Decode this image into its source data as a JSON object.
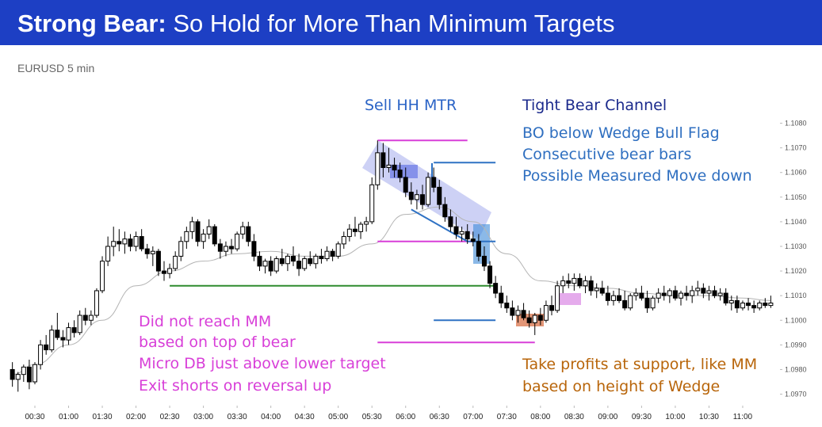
{
  "title_lead": "Strong Bear:",
  "title": "So Hold for More Than Minimum Targets",
  "chart_data": {
    "type": "candlestick",
    "subtitle": "EURUSD 5 min",
    "up_color": "#ffffff",
    "down_color": "#000000",
    "x": [
      "00:10",
      "00:15",
      "00:20",
      "00:25",
      "00:30",
      "00:35",
      "00:40",
      "00:45",
      "00:50",
      "00:55",
      "01:00",
      "01:05",
      "01:10",
      "01:15",
      "01:20",
      "01:25",
      "01:30",
      "01:35",
      "01:40",
      "01:45",
      "01:50",
      "01:55",
      "02:00",
      "02:05",
      "02:10",
      "02:15",
      "02:20",
      "02:25",
      "02:30",
      "02:35",
      "02:40",
      "02:45",
      "02:50",
      "02:55",
      "03:00",
      "03:05",
      "03:10",
      "03:15",
      "03:20",
      "03:25",
      "03:30",
      "03:35",
      "03:40",
      "03:45",
      "03:50",
      "03:55",
      "04:00",
      "04:05",
      "04:10",
      "04:15",
      "04:20",
      "04:25",
      "04:30",
      "04:35",
      "04:40",
      "04:45",
      "04:50",
      "04:55",
      "05:00",
      "05:05",
      "05:10",
      "05:15",
      "05:20",
      "05:25",
      "05:30",
      "05:35",
      "05:40",
      "05:45",
      "05:50",
      "05:55",
      "06:00",
      "06:05",
      "06:10",
      "06:15",
      "06:20",
      "06:25",
      "06:30",
      "06:35",
      "06:40",
      "06:45",
      "06:50",
      "06:55",
      "07:00",
      "07:05",
      "07:10",
      "07:15",
      "07:20",
      "07:25",
      "07:30",
      "07:35",
      "07:40",
      "07:45",
      "07:50",
      "07:55",
      "08:00",
      "08:05",
      "08:10",
      "08:15",
      "08:20",
      "08:25",
      "08:30",
      "08:35",
      "08:40",
      "08:45",
      "08:50",
      "08:55",
      "09:00",
      "09:05",
      "09:10",
      "09:15",
      "09:20",
      "09:25",
      "09:30",
      "09:35",
      "09:40",
      "09:45",
      "09:50",
      "09:55",
      "10:00",
      "10:05",
      "10:10",
      "10:15",
      "10:20",
      "10:25",
      "10:30",
      "10:35",
      "10:40",
      "10:45",
      "10:50",
      "10:55",
      "11:00",
      "11:05",
      "11:10",
      "11:15",
      "11:20",
      "11:25"
    ],
    "ohlc": [
      [
        1.098,
        1.0983,
        1.0973,
        1.0976
      ],
      [
        1.0976,
        1.0979,
        1.0971,
        1.0978
      ],
      [
        1.0978,
        1.0982,
        1.0975,
        1.0981
      ],
      [
        1.0981,
        1.0984,
        1.0972,
        1.0975
      ],
      [
        1.0975,
        1.0983,
        1.0974,
        1.0982
      ],
      [
        1.0982,
        1.0992,
        1.098,
        1.099
      ],
      [
        1.099,
        1.0994,
        1.0986,
        1.0988
      ],
      [
        1.0988,
        1.0998,
        1.0987,
        1.0996
      ],
      [
        1.0996,
        1.1003,
        1.0992,
        1.0993
      ],
      [
        1.0993,
        1.0996,
        1.0989,
        1.0992
      ],
      [
        1.0992,
        1.0999,
        1.099,
        1.0997
      ],
      [
        1.0997,
        1.1,
        1.0993,
        1.0995
      ],
      [
        1.0995,
        1.1004,
        1.0994,
        1.1002
      ],
      [
        1.1002,
        1.1005,
        1.0998,
        1.1
      ],
      [
        1.1,
        1.1004,
        1.0998,
        1.1002
      ],
      [
        1.1002,
        1.1013,
        1.1001,
        1.1012
      ],
      [
        1.1012,
        1.1026,
        1.1011,
        1.1024
      ],
      [
        1.1024,
        1.1034,
        1.1022,
        1.103
      ],
      [
        1.103,
        1.1038,
        1.1026,
        1.1032
      ],
      [
        1.1032,
        1.1037,
        1.1028,
        1.1031
      ],
      [
        1.1031,
        1.1036,
        1.1027,
        1.1033
      ],
      [
        1.1033,
        1.1035,
        1.1028,
        1.103
      ],
      [
        1.103,
        1.1036,
        1.1028,
        1.1034
      ],
      [
        1.1034,
        1.1037,
        1.1028,
        1.1029
      ],
      [
        1.1029,
        1.1031,
        1.1025,
        1.1027
      ],
      [
        1.1027,
        1.103,
        1.1022,
        1.1028
      ],
      [
        1.1028,
        1.1029,
        1.1018,
        1.102
      ],
      [
        1.102,
        1.1024,
        1.1016,
        1.1019
      ],
      [
        1.1019,
        1.1023,
        1.1017,
        1.1021
      ],
      [
        1.1021,
        1.1028,
        1.102,
        1.1026
      ],
      [
        1.1026,
        1.1034,
        1.1024,
        1.1032
      ],
      [
        1.1032,
        1.1038,
        1.1029,
        1.1036
      ],
      [
        1.1036,
        1.1042,
        1.1033,
        1.104
      ],
      [
        1.104,
        1.1041,
        1.103,
        1.1032
      ],
      [
        1.1032,
        1.1037,
        1.1029,
        1.1035
      ],
      [
        1.1035,
        1.1041,
        1.1033,
        1.1038
      ],
      [
        1.1038,
        1.1039,
        1.103,
        1.1031
      ],
      [
        1.1031,
        1.1033,
        1.1025,
        1.1028
      ],
      [
        1.1028,
        1.1032,
        1.1026,
        1.103
      ],
      [
        1.103,
        1.1033,
        1.1027,
        1.1029
      ],
      [
        1.1029,
        1.1036,
        1.1028,
        1.1035
      ],
      [
        1.1035,
        1.104,
        1.1033,
        1.1038
      ],
      [
        1.1038,
        1.104,
        1.103,
        1.1032
      ],
      [
        1.1032,
        1.1035,
        1.1024,
        1.1026
      ],
      [
        1.1026,
        1.1028,
        1.102,
        1.1022
      ],
      [
        1.1022,
        1.1025,
        1.1019,
        1.1024
      ],
      [
        1.1024,
        1.1026,
        1.1018,
        1.102
      ],
      [
        1.102,
        1.1026,
        1.1019,
        1.1025
      ],
      [
        1.1025,
        1.1029,
        1.1022,
        1.1023
      ],
      [
        1.1023,
        1.1027,
        1.102,
        1.1026
      ],
      [
        1.1026,
        1.103,
        1.1022,
        1.1024
      ],
      [
        1.1024,
        1.1027,
        1.1018,
        1.1021
      ],
      [
        1.1021,
        1.1026,
        1.102,
        1.1025
      ],
      [
        1.1025,
        1.1028,
        1.1022,
        1.1023
      ],
      [
        1.1023,
        1.1027,
        1.1021,
        1.1026
      ],
      [
        1.1026,
        1.1029,
        1.1023,
        1.1025
      ],
      [
        1.1025,
        1.103,
        1.1024,
        1.1028
      ],
      [
        1.1028,
        1.1029,
        1.1024,
        1.1026
      ],
      [
        1.1026,
        1.1032,
        1.1025,
        1.1031
      ],
      [
        1.1031,
        1.1036,
        1.1029,
        1.1034
      ],
      [
        1.1034,
        1.1039,
        1.1032,
        1.1037
      ],
      [
        1.1037,
        1.1042,
        1.1034,
        1.1036
      ],
      [
        1.1036,
        1.104,
        1.1033,
        1.1039
      ],
      [
        1.1039,
        1.1042,
        1.1036,
        1.104
      ],
      [
        1.104,
        1.1058,
        1.1039,
        1.1055
      ],
      [
        1.1055,
        1.1073,
        1.1053,
        1.1068
      ],
      [
        1.1068,
        1.1072,
        1.1058,
        1.1062
      ],
      [
        1.1062,
        1.107,
        1.106,
        1.1063
      ],
      [
        1.1063,
        1.1066,
        1.1058,
        1.1061
      ],
      [
        1.1061,
        1.1064,
        1.1056,
        1.1058
      ],
      [
        1.1058,
        1.1062,
        1.105,
        1.1052
      ],
      [
        1.1052,
        1.1056,
        1.1047,
        1.1049
      ],
      [
        1.1049,
        1.1053,
        1.1045,
        1.1051
      ],
      [
        1.1051,
        1.1055,
        1.1045,
        1.1047
      ],
      [
        1.1047,
        1.106,
        1.1046,
        1.1058
      ],
      [
        1.1058,
        1.1062,
        1.1052,
        1.1054
      ],
      [
        1.1054,
        1.1057,
        1.1045,
        1.1047
      ],
      [
        1.1047,
        1.105,
        1.104,
        1.1042
      ],
      [
        1.1042,
        1.1045,
        1.1036,
        1.1038
      ],
      [
        1.1038,
        1.1042,
        1.1033,
        1.1035
      ],
      [
        1.1035,
        1.1038,
        1.1032,
        1.1036
      ],
      [
        1.1036,
        1.1039,
        1.1031,
        1.1033
      ],
      [
        1.1033,
        1.1036,
        1.103,
        1.1032
      ],
      [
        1.1032,
        1.1035,
        1.1024,
        1.1026
      ],
      [
        1.1026,
        1.103,
        1.102,
        1.1022
      ],
      [
        1.1022,
        1.1024,
        1.1013,
        1.1015
      ],
      [
        1.1015,
        1.1018,
        1.1009,
        1.1011
      ],
      [
        1.1011,
        1.1014,
        1.1005,
        1.1007
      ],
      [
        1.1007,
        1.101,
        1.1003,
        1.1005
      ],
      [
        1.1005,
        1.1008,
        1.1,
        1.1002
      ],
      [
        1.1002,
        1.1006,
        1.0999,
        1.1004
      ],
      [
        1.1004,
        1.1007,
        1.1,
        1.1001
      ],
      [
        1.1001,
        1.1004,
        1.0997,
        1.0999
      ],
      [
        1.0999,
        1.1003,
        1.0994,
        1.1002
      ],
      [
        1.1002,
        1.1005,
        1.0998,
        1.1
      ],
      [
        1.1,
        1.1008,
        1.0999,
        1.1006
      ],
      [
        1.1006,
        1.101,
        1.1002,
        1.1004
      ],
      [
        1.1004,
        1.1016,
        1.1003,
        1.1014
      ],
      [
        1.1014,
        1.1018,
        1.1011,
        1.1016
      ],
      [
        1.1016,
        1.1019,
        1.1013,
        1.1015
      ],
      [
        1.1015,
        1.1019,
        1.1012,
        1.1017
      ],
      [
        1.1017,
        1.1019,
        1.1013,
        1.1014
      ],
      [
        1.1014,
        1.1018,
        1.1011,
        1.1016
      ],
      [
        1.1016,
        1.1018,
        1.101,
        1.1012
      ],
      [
        1.1012,
        1.1015,
        1.1009,
        1.1013
      ],
      [
        1.1013,
        1.1016,
        1.101,
        1.1011
      ],
      [
        1.1011,
        1.1014,
        1.1006,
        1.1008
      ],
      [
        1.1008,
        1.1012,
        1.1006,
        1.101
      ],
      [
        1.101,
        1.1013,
        1.1007,
        1.1008
      ],
      [
        1.1008,
        1.1012,
        1.1004,
        1.1005
      ],
      [
        1.1005,
        1.1011,
        1.1004,
        1.101
      ],
      [
        1.101,
        1.1013,
        1.1008,
        1.1011
      ],
      [
        1.1011,
        1.1014,
        1.1008,
        1.1009
      ],
      [
        1.1009,
        1.1012,
        1.1003,
        1.1005
      ],
      [
        1.1005,
        1.101,
        1.1004,
        1.1009
      ],
      [
        1.1009,
        1.1013,
        1.1007,
        1.1011
      ],
      [
        1.1011,
        1.1014,
        1.1008,
        1.101
      ],
      [
        1.101,
        1.1013,
        1.1007,
        1.1012
      ],
      [
        1.1012,
        1.1014,
        1.1008,
        1.1009
      ],
      [
        1.1009,
        1.1012,
        1.1006,
        1.1011
      ],
      [
        1.1011,
        1.1014,
        1.1008,
        1.101
      ],
      [
        1.101,
        1.1014,
        1.1007,
        1.1012
      ],
      [
        1.1012,
        1.1016,
        1.101,
        1.1013
      ],
      [
        1.1013,
        1.1015,
        1.1009,
        1.1011
      ],
      [
        1.1011,
        1.1014,
        1.1008,
        1.1012
      ],
      [
        1.1012,
        1.1014,
        1.1009,
        1.101
      ],
      [
        1.101,
        1.1013,
        1.1008,
        1.1011
      ],
      [
        1.1011,
        1.1013,
        1.1006,
        1.1007
      ],
      [
        1.1007,
        1.101,
        1.1004,
        1.1008
      ],
      [
        1.1008,
        1.101,
        1.1003,
        1.1005
      ],
      [
        1.1005,
        1.1008,
        1.1004,
        1.1007
      ],
      [
        1.1007,
        1.1009,
        1.1004,
        1.1006
      ],
      [
        1.1006,
        1.1008,
        1.1003,
        1.1005
      ],
      [
        1.1005,
        1.1008,
        1.1004,
        1.1007
      ],
      [
        1.1007,
        1.1009,
        1.1005,
        1.1006
      ],
      [
        1.1006,
        1.101,
        1.1005,
        1.1007
      ]
    ],
    "ema": {
      "color": "#b4b4b4",
      "x": [
        "00:10",
        "00:30",
        "01:00",
        "01:30",
        "02:00",
        "02:30",
        "03:00",
        "03:30",
        "04:00",
        "04:30",
        "05:00",
        "05:30",
        "06:00",
        "06:30",
        "07:00",
        "07:30",
        "08:00",
        "08:30",
        "09:00",
        "09:30",
        "10:00",
        "10:30",
        "11:00",
        "11:25"
      ],
      "values": [
        1.0978,
        1.0982,
        1.099,
        1.1,
        1.1014,
        1.102,
        1.1024,
        1.1027,
        1.1028,
        1.1026,
        1.1026,
        1.1031,
        1.1043,
        1.1046,
        1.104,
        1.1027,
        1.1016,
        1.1014,
        1.1013,
        1.1011,
        1.101,
        1.101,
        1.1009,
        1.1008
      ]
    },
    "levels": [
      {
        "value": 1.1073,
        "from": "05:35",
        "to": "06:55",
        "color": "#d83fd8"
      },
      {
        "value": 1.1032,
        "from": "05:35",
        "to": "07:00",
        "color": "#d83fd8"
      },
      {
        "value": 1.0991,
        "from": "05:35",
        "to": "07:55",
        "color": "#d83fd8"
      },
      {
        "value": 1.1064,
        "from": "06:25",
        "to": "07:20",
        "color": "#2f72c4"
      },
      {
        "value": 1.1032,
        "from": "06:55",
        "to": "07:20",
        "color": "#2f72c4"
      },
      {
        "value": 1.1,
        "from": "06:25",
        "to": "07:20",
        "color": "#2f72c4"
      },
      {
        "value": 1.1014,
        "from": "02:30",
        "to": "07:20",
        "color": "#2e8b2e"
      }
    ],
    "trendlines": [
      {
        "x": [
          "06:05",
          "06:55"
        ],
        "values": [
          1.1045,
          1.1032
        ],
        "color": "#2f72c4"
      }
    ],
    "ylim": [
      1.0963,
      1.1085
    ],
    "yticks": [
      {
        "value": 1.097,
        "label": "1.0970"
      },
      {
        "value": 1.098,
        "label": "1.0980"
      },
      {
        "value": 1.099,
        "label": "1.0990"
      },
      {
        "value": 1.1,
        "label": "1.1000"
      },
      {
        "value": 1.101,
        "label": "1.1010"
      },
      {
        "value": 1.102,
        "label": "1.1020"
      },
      {
        "value": 1.103,
        "label": "1.1030"
      },
      {
        "value": 1.104,
        "label": "1.1040"
      },
      {
        "value": 1.105,
        "label": "1.1050"
      },
      {
        "value": 1.106,
        "label": "1.1060"
      },
      {
        "value": 1.107,
        "label": "1.1070"
      },
      {
        "value": 1.108,
        "label": "1.1080"
      }
    ],
    "xticks": [
      "00:30",
      "01:00",
      "01:30",
      "02:00",
      "02:30",
      "03:00",
      "03:30",
      "04:00",
      "04:30",
      "05:00",
      "05:30",
      "06:00",
      "06:30",
      "07:00",
      "07:30",
      "08:00",
      "08:30",
      "09:00",
      "09:30",
      "10:00",
      "10:30",
      "11:00"
    ],
    "annotations": [
      [
        "Sell HH MTR"
      ],
      [
        "Tight Bear Channel"
      ],
      [
        "BO below Wedge Bull Flag",
        "Consecutive bear bars",
        "Possible Measured Move down"
      ],
      [
        "Did not reach MM",
        "based on top of bear",
        "Micro DB just above lower target",
        "Exit shorts on reversal up"
      ],
      [
        "Take profits at support, like MM",
        "based on height of Wedge"
      ]
    ]
  }
}
